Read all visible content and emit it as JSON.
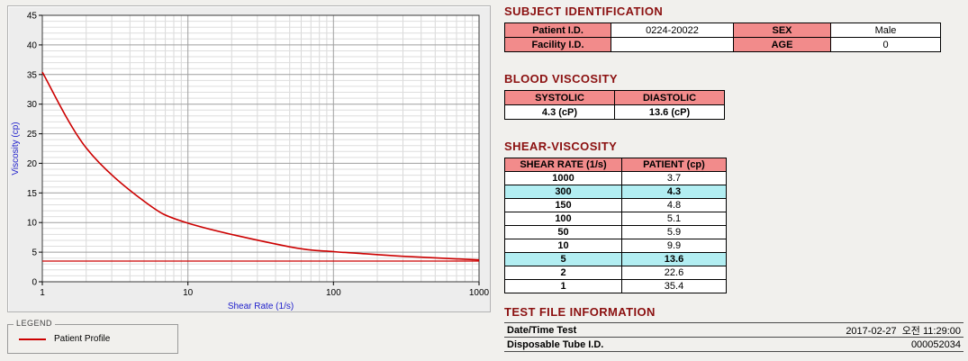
{
  "chart": {
    "legend_title": "LEGEND",
    "legend_item": "Patient Profile"
  },
  "chart_data": {
    "type": "line",
    "title": "",
    "xlabel": "Shear Rate (1/s)",
    "ylabel": "Viscosity (cp)",
    "x_scale": "log",
    "xlim": [
      1,
      1000
    ],
    "ylim": [
      0,
      45
    ],
    "x_ticks": [
      1,
      10,
      100,
      1000
    ],
    "y_ticks": [
      0,
      5,
      10,
      15,
      20,
      25,
      30,
      35,
      40,
      45
    ],
    "grid": true,
    "axis_label_color": "#2222cc",
    "reference_line_y": 3.5,
    "series": [
      {
        "name": "Patient Profile",
        "color": "#cc0000",
        "x": [
          1,
          2,
          5,
          10,
          50,
          100,
          150,
          300,
          1000
        ],
        "y": [
          35.4,
          22.6,
          13.6,
          9.9,
          5.9,
          5.1,
          4.8,
          4.3,
          3.7
        ]
      }
    ]
  },
  "sections": {
    "subject": {
      "title": "SUBJECT IDENTIFICATION",
      "rows": [
        {
          "label1": "Patient I.D.",
          "value1": "0224-20022",
          "label2": "SEX",
          "value2": "Male"
        },
        {
          "label1": "Facility I.D.",
          "value1": "",
          "label2": "AGE",
          "value2": "0"
        }
      ]
    },
    "blood": {
      "title": "BLOOD VISCOSITY",
      "headers": [
        "SYSTOLIC",
        "DIASTOLIC"
      ],
      "values": [
        "4.3 (cP)",
        "13.6 (cP)"
      ]
    },
    "shear": {
      "title": "SHEAR-VISCOSITY",
      "headers": [
        "SHEAR RATE (1/s)",
        "PATIENT (cp)"
      ],
      "rows": [
        {
          "rate": "1000",
          "value": "3.7",
          "highlight": false
        },
        {
          "rate": "300",
          "value": "4.3",
          "highlight": true
        },
        {
          "rate": "150",
          "value": "4.8",
          "highlight": false
        },
        {
          "rate": "100",
          "value": "5.1",
          "highlight": false
        },
        {
          "rate": "50",
          "value": "5.9",
          "highlight": false
        },
        {
          "rate": "10",
          "value": "9.9",
          "highlight": false
        },
        {
          "rate": "5",
          "value": "13.6",
          "highlight": true
        },
        {
          "rate": "2",
          "value": "22.6",
          "highlight": false
        },
        {
          "rate": "1",
          "value": "35.4",
          "highlight": false
        }
      ]
    },
    "test_file": {
      "title": "TEST FILE INFORMATION",
      "rows": [
        {
          "label": "Date/Time Test",
          "value": "2017-02-27  오전 11:29:00"
        },
        {
          "label": "Disposable Tube I.D.",
          "value": "000052034"
        }
      ]
    }
  },
  "colors": {
    "heading": "#8b1010",
    "table_header_bg": "#f28b8b",
    "highlight_bg": "#b2eef2",
    "series": "#cc0000"
  }
}
